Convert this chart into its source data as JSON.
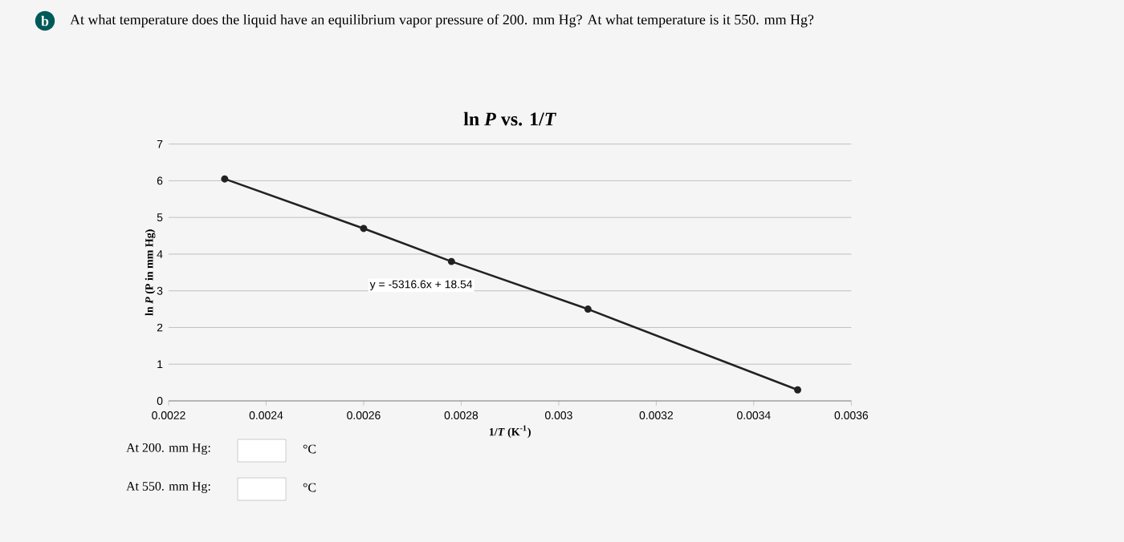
{
  "chart_data": {
    "type": "line",
    "title": "ln *P* vs. 1/*T*",
    "xlabel": "1/*T* (K$^{-1}$)",
    "ylabel": "ln *P* (P in mm Hg)",
    "x": [
      0.002315,
      0.0026,
      0.00278,
      0.00306,
      0.00349
    ],
    "series": [
      {
        "color": "#222222",
        "values": [
          6.05,
          4.7,
          3.8,
          2.5,
          0.3
        ]
      }
    ],
    "marker": "circle",
    "line_style": "solid",
    "grid": "y",
    "xlim": [
      0.0022,
      0.0036
    ],
    "ylim": [
      0,
      7
    ],
    "xticks": [
      {
        "value": 0.0022,
        "label": "0.0022"
      },
      {
        "value": 0.0024,
        "label": "0.0024"
      },
      {
        "value": 0.0026,
        "label": "0.0026"
      },
      {
        "value": 0.0028,
        "label": "0.0028"
      },
      {
        "value": 0.003,
        "label": "0.003"
      },
      {
        "value": 0.0032,
        "label": "0.0032"
      },
      {
        "value": 0.0034,
        "label": "0.0034"
      },
      {
        "value": 0.0036,
        "label": "0.0036"
      }
    ],
    "yticks": [
      0,
      1,
      2,
      3,
      4,
      5,
      6,
      7
    ],
    "annotations": [
      "y = -5316.6x + 18.54",
      "b",
      "At what temperature does the liquid have an equilibrium vapor pressure of  200. mm Hg? At what temperature is it 550. mm Hg?",
      "At 200. mm Hg:",
      "°C",
      "At 550. mm Hg:",
      "°C"
    ]
  }
}
